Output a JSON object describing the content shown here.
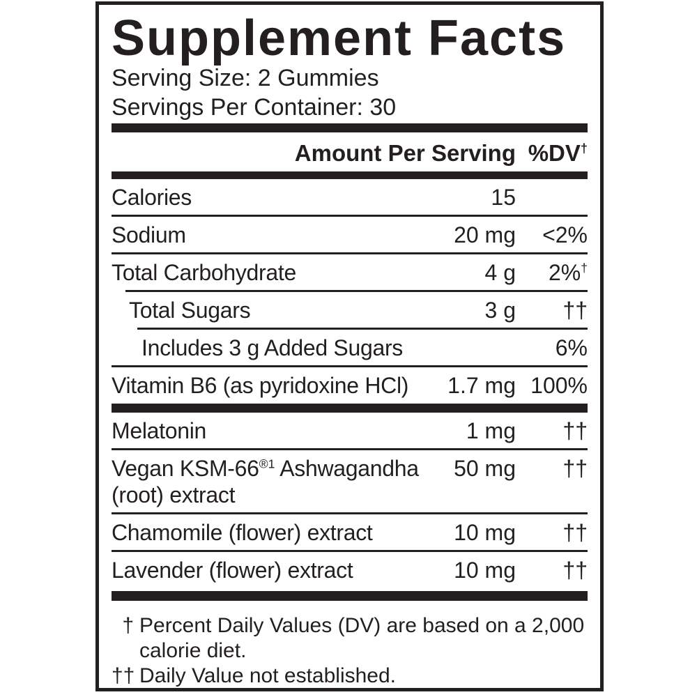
{
  "colors": {
    "ink": "#231f20",
    "background": "#ffffff"
  },
  "label": {
    "title": "Supplement Facts",
    "serving_size": "Serving Size: 2 Gummies",
    "servings_per_container": "Servings Per Container: 30",
    "header": {
      "amount": "Amount Per Serving",
      "dv": "%DV",
      "dv_sup": "†"
    },
    "rows": [
      {
        "name": "Calories",
        "amount": "15",
        "dv": ""
      },
      {
        "name": "Sodium",
        "amount": "20 mg",
        "dv": "<2%"
      },
      {
        "name": "Total Carbohydrate",
        "amount": "4 g",
        "dv": "2%",
        "dv_sup": "†"
      },
      {
        "name": "Total Sugars",
        "amount": "3 g",
        "dv": "††"
      },
      {
        "name": "Includes 3 g Added Sugars",
        "amount": "",
        "dv": "6%"
      },
      {
        "name": "Vitamin B6 (as pyridoxine HCl)",
        "amount": "1.7 mg",
        "dv": "100%"
      }
    ],
    "rows2": [
      {
        "name": "Melatonin",
        "amount": "1 mg",
        "dv": "††"
      },
      {
        "name": "Vegan KSM-66",
        "name_sup": "®1",
        "name_rest": " Ashwagandha (root) extract",
        "amount": "50 mg",
        "dv": "††"
      },
      {
        "name": "Chamomile (flower) extract",
        "amount": "10 mg",
        "dv": "††"
      },
      {
        "name": "Lavender (flower) extract",
        "amount": "10 mg",
        "dv": "††"
      }
    ],
    "footnotes": [
      {
        "symbol": "†",
        "text": "Percent Daily Values (DV) are based on a 2,000 calorie diet."
      },
      {
        "symbol": "††",
        "text": "Daily Value not established."
      }
    ]
  }
}
